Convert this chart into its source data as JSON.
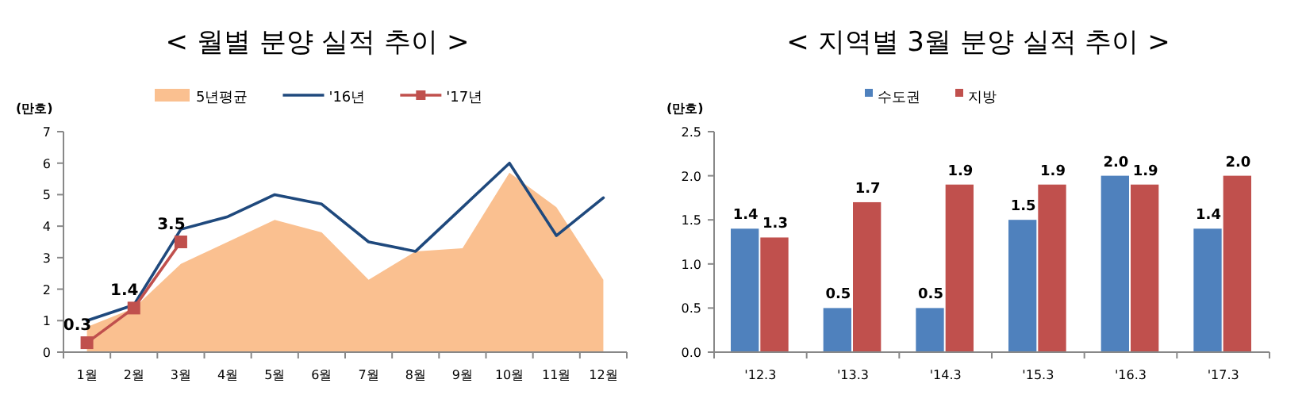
{
  "chart_data": [
    {
      "type": "line",
      "title": "< 월별 분양 실적 추이 >",
      "ylabel": "(만호)",
      "categories": [
        "1월",
        "2월",
        "3월",
        "4월",
        "5월",
        "6월",
        "7월",
        "8월",
        "9월",
        "10월",
        "11월",
        "12월"
      ],
      "ylim": [
        0,
        7
      ],
      "yticks": [
        0,
        1,
        2,
        3,
        4,
        5,
        6,
        7
      ],
      "grid": false,
      "legend": "top",
      "series": [
        {
          "name": "5년평균",
          "type": "area",
          "color": "#fac090",
          "values": [
            0.8,
            1.4,
            2.8,
            3.5,
            4.2,
            3.8,
            2.3,
            3.2,
            3.3,
            5.7,
            4.6,
            2.3
          ]
        },
        {
          "name": "'16년",
          "color": "#1f497d",
          "values": [
            1.0,
            1.5,
            3.9,
            4.3,
            5.0,
            4.7,
            3.5,
            3.2,
            4.6,
            6.0,
            3.7,
            4.9
          ]
        },
        {
          "name": "'17년",
          "color": "#c0504d",
          "marker": "square",
          "values": [
            0.3,
            1.4,
            3.5,
            null,
            null,
            null,
            null,
            null,
            null,
            null,
            null,
            null
          ],
          "value_labels": [
            "0.3",
            "1.4",
            "3.5",
            null,
            null,
            null,
            null,
            null,
            null,
            null,
            null,
            null
          ]
        }
      ]
    },
    {
      "type": "bar",
      "title": "< 지역별 3월 분양 실적 추이 >",
      "ylabel": "(만호)",
      "categories": [
        "'12.3",
        "'13.3",
        "'14.3",
        "'15.3",
        "'16.3",
        "'17.3"
      ],
      "ylim": [
        0,
        2.5
      ],
      "yticks": [
        {
          "value": 0,
          "label": "0.0"
        },
        {
          "value": 0.5,
          "label": "0.5"
        },
        {
          "value": 1,
          "label": "1.0"
        },
        {
          "value": 1.5,
          "label": "1.5"
        },
        {
          "value": 2,
          "label": "2.0"
        },
        {
          "value": 2.5,
          "label": "2.5"
        }
      ],
      "grid": false,
      "legend": "top",
      "series": [
        {
          "name": "수도권",
          "color": "#4f81bd",
          "values": [
            1.4,
            0.5,
            0.5,
            1.5,
            2.0,
            1.4
          ],
          "value_labels": [
            "1.4",
            "0.5",
            "0.5",
            "1.5",
            "2.0",
            "1.4"
          ]
        },
        {
          "name": "지방",
          "color": "#c0504d",
          "values": [
            1.3,
            1.7,
            1.9,
            1.9,
            1.9,
            2.0
          ],
          "value_labels": [
            "1.3",
            "1.7",
            "1.9",
            "1.9",
            "1.9",
            "2.0"
          ]
        }
      ]
    }
  ]
}
